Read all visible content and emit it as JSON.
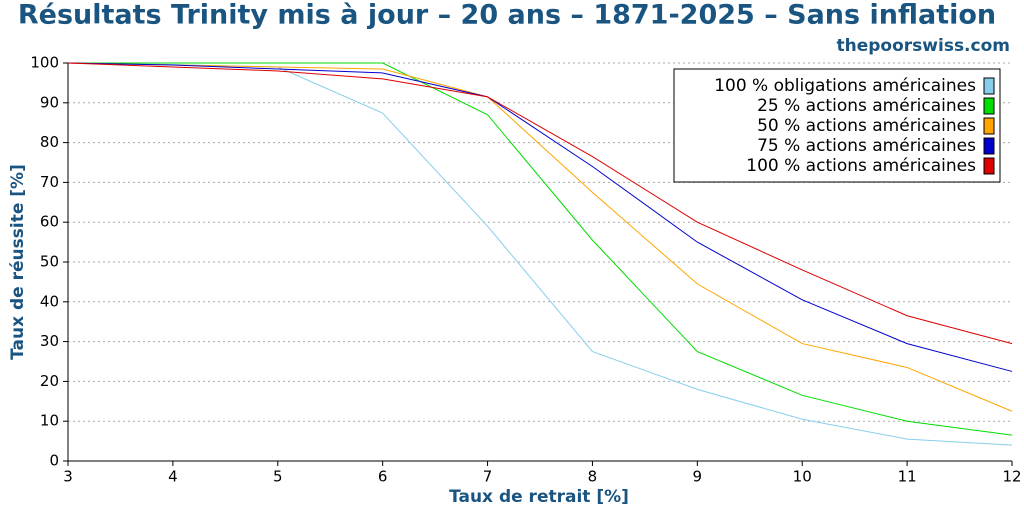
{
  "chart_data": {
    "type": "line",
    "title": "Résultats Trinity mis à jour – 20 ans – 1871-2025 – Sans inflation",
    "subtitle": "thepoorswiss.com",
    "x_label": "Taux de retrait [%]",
    "y_label": "Taux de réussite [%]",
    "x": [
      3,
      4,
      5,
      6,
      7,
      8,
      9,
      10,
      11,
      12
    ],
    "xlim": [
      3,
      12
    ],
    "xticks": [
      3,
      4,
      5,
      6,
      7,
      8,
      9,
      10,
      11,
      12
    ],
    "ylim": [
      0,
      100
    ],
    "yticks": [
      0,
      10,
      20,
      30,
      40,
      50,
      60,
      70,
      80,
      90,
      100
    ],
    "grid": true,
    "legend": "upper right",
    "series": [
      {
        "name": "100 % obligations américaines",
        "color": "#87ceeb",
        "values": [
          100,
          99.6,
          99,
          87.4,
          59,
          27.5,
          18,
          10.5,
          5.5,
          4
        ]
      },
      {
        "name": "25 % actions américaines",
        "color": "#00dd00",
        "values": [
          100,
          100,
          100,
          100,
          87,
          55.5,
          27.5,
          16.5,
          10,
          6.5
        ]
      },
      {
        "name": "50 % actions américaines",
        "color": "#ffa500",
        "values": [
          100,
          99.5,
          99,
          98.5,
          91.5,
          67.5,
          44.5,
          29.5,
          23.5,
          12.5
        ]
      },
      {
        "name": "75 % actions américaines",
        "color": "#0000cc",
        "values": [
          100,
          99.5,
          98.5,
          97.5,
          91.5,
          74,
          55,
          40.5,
          29.5,
          22.5
        ]
      },
      {
        "name": "100 % actions américaines",
        "color": "#dd0000",
        "values": [
          100,
          99,
          98,
          96,
          91.5,
          76.5,
          60,
          48,
          36.5,
          29.5
        ]
      }
    ]
  }
}
